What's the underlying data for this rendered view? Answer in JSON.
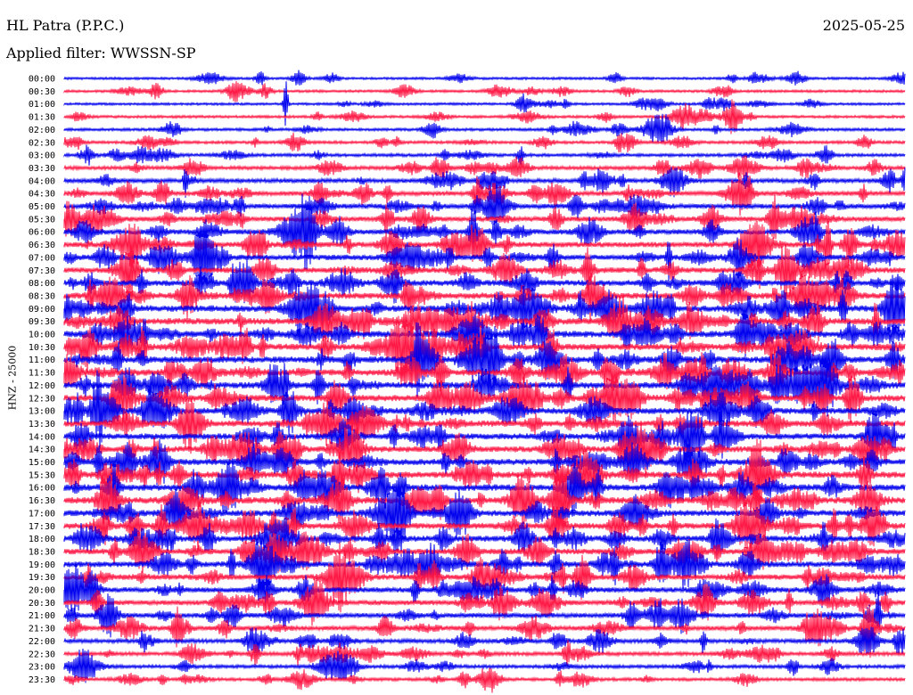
{
  "header": {
    "station": "HL Patra (P.P.C.)",
    "date": "2025-05-25",
    "filter": "Applied filter: WWSSN-SP"
  },
  "colors": {
    "trace_a": "#0000ee",
    "trace_b": "#ff1744",
    "background": "#ffffff"
  },
  "chart_data": {
    "type": "line",
    "ylabel": "HNZ - 25000",
    "rows": [
      "00:00",
      "00:30",
      "01:00",
      "01:30",
      "02:00",
      "02:30",
      "03:00",
      "03:30",
      "04:00",
      "04:30",
      "05:00",
      "05:30",
      "06:00",
      "06:30",
      "07:00",
      "07:30",
      "08:00",
      "08:30",
      "09:00",
      "09:30",
      "10:00",
      "10:30",
      "11:00",
      "11:30",
      "12:00",
      "12:30",
      "13:00",
      "13:30",
      "14:00",
      "14:30",
      "15:00",
      "15:30",
      "16:00",
      "16:30",
      "17:00",
      "17:30",
      "18:00",
      "18:30",
      "19:00",
      "19:30",
      "20:00",
      "20:30",
      "21:00",
      "21:30",
      "22:00",
      "22:30",
      "23:00",
      "23:30"
    ],
    "activity": [
      0.2,
      0.22,
      0.2,
      0.25,
      0.28,
      0.3,
      0.35,
      0.45,
      0.55,
      0.6,
      0.65,
      0.7,
      0.72,
      0.78,
      0.8,
      0.85,
      0.9,
      0.95,
      1.0,
      1.0,
      1.0,
      1.0,
      1.0,
      1.0,
      1.0,
      1.0,
      0.95,
      0.95,
      0.9,
      0.9,
      0.95,
      1.0,
      1.0,
      1.0,
      0.95,
      0.9,
      0.9,
      0.85,
      0.85,
      0.8,
      0.75,
      0.7,
      0.65,
      0.6,
      0.5,
      0.45,
      0.4,
      0.35
    ],
    "grid": false
  }
}
